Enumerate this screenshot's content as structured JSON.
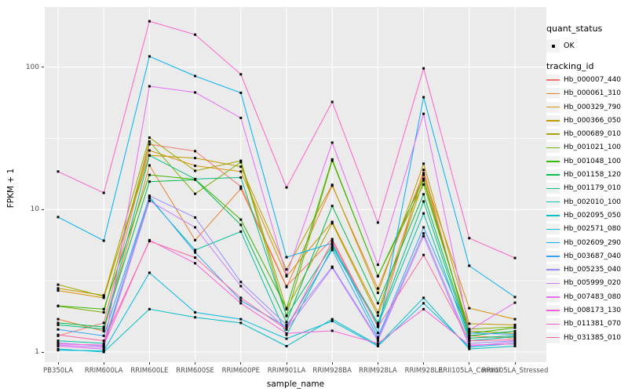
{
  "chart_data": {
    "type": "line",
    "title": "",
    "xlabel": "sample_name",
    "ylabel": "FPKM + 1",
    "y_scale": "log10",
    "ylim": [
      0.85,
      265
    ],
    "grid": true,
    "legend_position": "right",
    "panel_bg": "#EBEBEB",
    "grid_color": "#FFFFFF",
    "point_color": "#000000",
    "tick_text_color": "#4D4D4D",
    "categories": [
      "PB350LA",
      "RRIM600LA",
      "RRIM600LE",
      "RRIM600SE",
      "RRIM600PE",
      "RRIM901LA",
      "RRIM928BA",
      "RRIM928LA",
      "RRIM928LE",
      "RRII105LA_Control",
      "RRII105LA_Stressed"
    ],
    "yticks": [
      {
        "label": "1",
        "value": 1
      },
      {
        "label": "10",
        "value": 10
      },
      {
        "label": "100",
        "value": 100
      }
    ],
    "minor_gridlines": [
      3.162,
      31.623
    ],
    "series": [
      {
        "name": "Hb_000007_440",
        "color": "#F8766D",
        "values": [
          1.3,
          1.6,
          28.7,
          25.7,
          14.5,
          2.9,
          6.2,
          1.5,
          19,
          1.25,
          1.3
        ]
      },
      {
        "name": "Hb_000061_310",
        "color": "#EA8331",
        "values": [
          1.7,
          1.4,
          20.4,
          6.1,
          14,
          2.86,
          14.7,
          2.79,
          18,
          1.3,
          1.25
        ]
      },
      {
        "name": "Hb_000329_790",
        "color": "#D89000",
        "values": [
          2.7,
          2.4,
          26,
          20.3,
          18.5,
          3.4,
          8.2,
          1.9,
          17.5,
          2.03,
          1.7
        ]
      },
      {
        "name": "Hb_000366_050",
        "color": "#C09B00",
        "values": [
          2.8,
          2.5,
          24,
          23,
          20,
          3.8,
          14.9,
          2.6,
          21,
          1.58,
          1.55
        ]
      },
      {
        "name": "Hb_000689_010",
        "color": "#A3A500",
        "values": [
          2.97,
          2.46,
          32,
          18.7,
          22,
          2.0,
          8.0,
          1.8,
          16,
          1.4,
          1.35
        ]
      },
      {
        "name": "Hb_001021_100",
        "color": "#7CAE00",
        "values": [
          2.1,
          1.9,
          30,
          12.9,
          21.5,
          1.8,
          22,
          3.42,
          15,
          1.45,
          1.5
        ]
      },
      {
        "name": "Hb_001048_100",
        "color": "#39B600",
        "values": [
          2.11,
          2.0,
          17.5,
          16.3,
          8.5,
          2.03,
          22.5,
          3.4,
          16.5,
          1.35,
          1.48
        ]
      },
      {
        "name": "Hb_001158_120",
        "color": "#00BB4E",
        "values": [
          1.6,
          1.5,
          15.7,
          16.2,
          7.8,
          1.62,
          10.6,
          2.2,
          12.8,
          1.3,
          1.4
        ]
      },
      {
        "name": "Hb_001179_010",
        "color": "#00BF7D",
        "values": [
          1.55,
          1.45,
          24,
          16.4,
          16.8,
          1.79,
          5.6,
          1.6,
          11.4,
          1.25,
          1.3
        ]
      },
      {
        "name": "Hb_002010_100",
        "color": "#00C1A3",
        "values": [
          1.2,
          1.15,
          12,
          5.2,
          7.0,
          1.32,
          5.4,
          1.55,
          9.4,
          1.2,
          1.28
        ]
      },
      {
        "name": "Hb_002095_050",
        "color": "#00BFC4",
        "values": [
          1.05,
          1.0,
          2.0,
          1.75,
          1.6,
          1.1,
          1.7,
          1.12,
          2.4,
          1.05,
          1.1
        ]
      },
      {
        "name": "Hb_002571_080",
        "color": "#00BAE0",
        "values": [
          1.03,
          1.02,
          3.6,
          1.9,
          1.7,
          1.24,
          1.65,
          1.1,
          2.2,
          1.08,
          1.15
        ]
      },
      {
        "name": "Hb_002609_290",
        "color": "#00B0F6",
        "values": [
          8.85,
          6.05,
          119,
          86.5,
          66,
          4.63,
          5.8,
          1.36,
          61.5,
          4.03,
          2.43
        ]
      },
      {
        "name": "Hb_003687_040",
        "color": "#35A2FF",
        "values": [
          1.44,
          1.3,
          12.3,
          5.0,
          2.3,
          1.5,
          5.2,
          1.27,
          7.5,
          1.36,
          1.33
        ]
      },
      {
        "name": "Hb_005235_040",
        "color": "#9590FF",
        "values": [
          1.16,
          1.1,
          12.5,
          8.8,
          3.1,
          1.55,
          3.97,
          1.24,
          6.8,
          1.15,
          1.2
        ]
      },
      {
        "name": "Hb_005999_020",
        "color": "#C77CFF",
        "values": [
          1.12,
          1.08,
          11.5,
          7.5,
          2.9,
          1.44,
          3.9,
          1.2,
          6.5,
          1.1,
          1.18
        ]
      },
      {
        "name": "Hb_007483_080",
        "color": "#E76BF3",
        "values": [
          1.1,
          1.05,
          73.4,
          66.4,
          44,
          3.46,
          29.5,
          4.1,
          47,
          1.42,
          2.22
        ]
      },
      {
        "name": "Hb_008173_130",
        "color": "#FA62DB",
        "values": [
          1.14,
          1.12,
          6.1,
          4.2,
          2.2,
          1.35,
          1.41,
          1.15,
          2.0,
          1.12,
          1.14
        ]
      },
      {
        "name": "Hb_011381_070",
        "color": "#FF61C9",
        "values": [
          18.5,
          13.1,
          210,
          169,
          89,
          14.3,
          57,
          8.1,
          98,
          6.3,
          4.57
        ]
      },
      {
        "name": "Hb_031385_010",
        "color": "#FF67A4",
        "values": [
          1.32,
          1.2,
          6.0,
          4.6,
          2.4,
          1.44,
          6.0,
          1.5,
          4.8,
          1.2,
          1.22
        ]
      }
    ]
  },
  "legend": {
    "quant_status_title": "quant_status",
    "quant_status_items": [
      {
        "label": "OK",
        "symbol": "black-point"
      }
    ],
    "tracking_id_title": "tracking_id"
  }
}
